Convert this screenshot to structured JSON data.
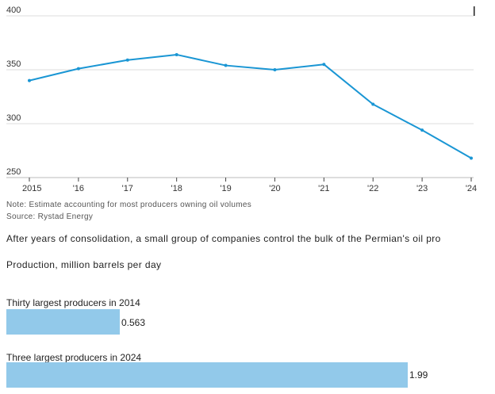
{
  "chart_data": [
    {
      "type": "line",
      "x": [
        "2015",
        "'16",
        "'17",
        "'18",
        "'19",
        "'20",
        "'21",
        "'22",
        "'23",
        "'24"
      ],
      "series": [
        {
          "values": [
            340,
            351,
            359,
            364,
            354,
            350,
            355,
            318,
            294,
            268
          ]
        }
      ],
      "yticks": [
        400,
        350,
        300,
        250
      ],
      "ylim": [
        250,
        400
      ],
      "color": "#1a96d4",
      "grid": true
    },
    {
      "type": "bar",
      "orientation": "horizontal",
      "categories": [
        "Thirty largest producers in 2014",
        "Three largest producers in 2024"
      ],
      "values": [
        0.563,
        1.99
      ],
      "value_labels": [
        "0.563",
        "1.99"
      ],
      "xlim": [
        0,
        2.1
      ],
      "color": "#92c9ea"
    }
  ],
  "notes": {
    "note": "Note: Estimate accounting for most producers owning oil volumes",
    "source": "Source: Rystad Energy"
  },
  "second_chart": {
    "headline": "After years of consolidation, a small group of companies control the bulk of the Permian's oil pro",
    "subtitle": "Production, million barrels per day"
  }
}
